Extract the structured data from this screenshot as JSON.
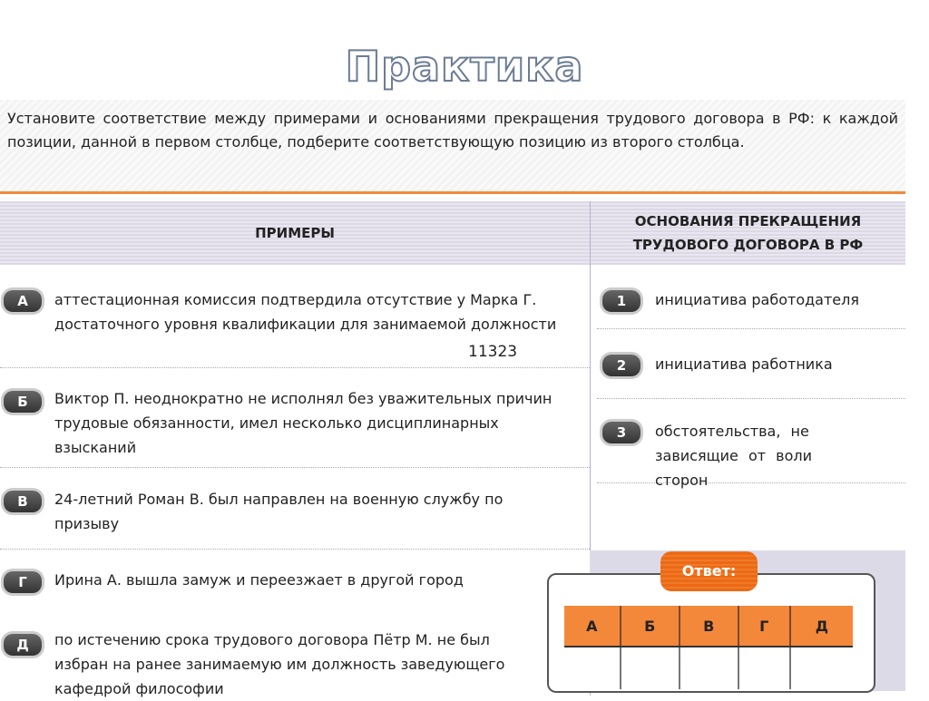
{
  "title": "Практика",
  "instruction": "Установите соответствие между примерами и основаниями прекращения трудового договора в РФ: к каждой позиции, данной в первом столбце, подберите соответствующую позицию из второго столбца.",
  "headers": {
    "examples": "ПРИМЕРЫ",
    "grounds": "ОСНОВАНИЯ ПРЕКРАЩЕНИЯ ТРУДОВОГО ДОГОВОРА В РФ"
  },
  "examples": [
    {
      "letter": "А",
      "text": "аттестационная комиссия подтвердила отсутствие у Марка Г. достаточного уровня квалификации для занимаемой должности"
    },
    {
      "letter": "Б",
      "text": "Виктор П. неоднократно не исполнял без уважительных причин трудовые обязанности, имел несколько дисциплинарных взысканий"
    },
    {
      "letter": "В",
      "text": "24-летний Роман В. был направлен на военную службу по призыву"
    },
    {
      "letter": "Г",
      "text": "Ирина А. вышла замуж и переезжает в другой город"
    },
    {
      "letter": "Д",
      "text": "по истечению срока трудового договора Пётр М. не был избран на ранее занимаемую им должность заведующего кафедрой философии"
    }
  ],
  "grounds": [
    {
      "num": "1",
      "text": "инициатива работодателя"
    },
    {
      "num": "2",
      "text": "инициатива работника"
    },
    {
      "num": "3",
      "text": "обстоятельства, не зависящие от воли сторон"
    }
  ],
  "handwritten_answer": "11323",
  "answer": {
    "label": "Ответ:",
    "columns": [
      "А",
      "Б",
      "В",
      "Г",
      "Д"
    ],
    "values": [
      "",
      "",
      "",
      "",
      ""
    ]
  }
}
